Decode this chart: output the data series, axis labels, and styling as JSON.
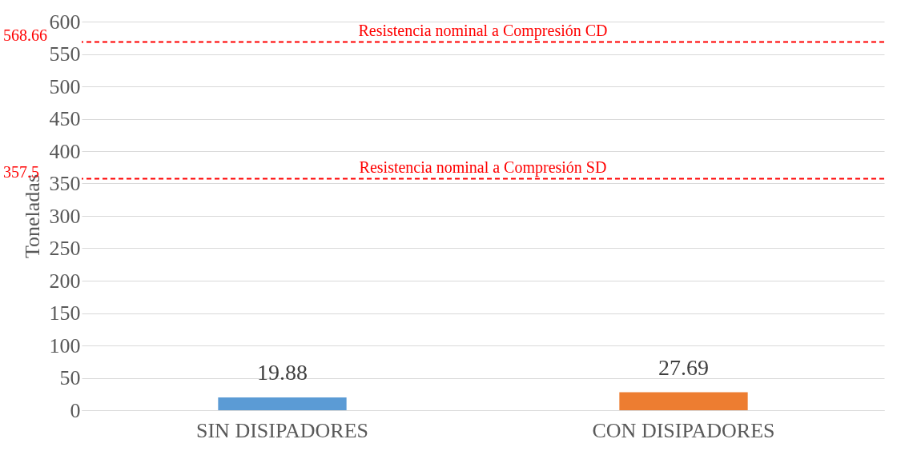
{
  "chart_data": {
    "type": "bar",
    "ylabel": "Toneladas",
    "categories": [
      "SIN DISIPADORES",
      "CON DISIPADORES"
    ],
    "values": [
      19.88,
      27.69
    ],
    "colors": [
      "#5b9bd5",
      "#ed7d31"
    ],
    "annotations": [
      "568.66",
      "357.5"
    ],
    "ylim": [
      0,
      600
    ],
    "yticks": [
      0,
      50,
      100,
      150,
      200,
      250,
      300,
      350,
      400,
      450,
      500,
      550,
      600
    ],
    "grid": "y",
    "data_labels": true,
    "ref_lines": [
      {
        "axis": "y",
        "value": 568.66,
        "label": "Resistencia nominal a Compresión CD",
        "color": "#ff0000",
        "line_style": "dashed"
      },
      {
        "axis": "y",
        "value": 357.5,
        "label": "Resistencia nominal a Compresión SD",
        "color": "#ff0000",
        "line_style": "dashed"
      }
    ]
  }
}
